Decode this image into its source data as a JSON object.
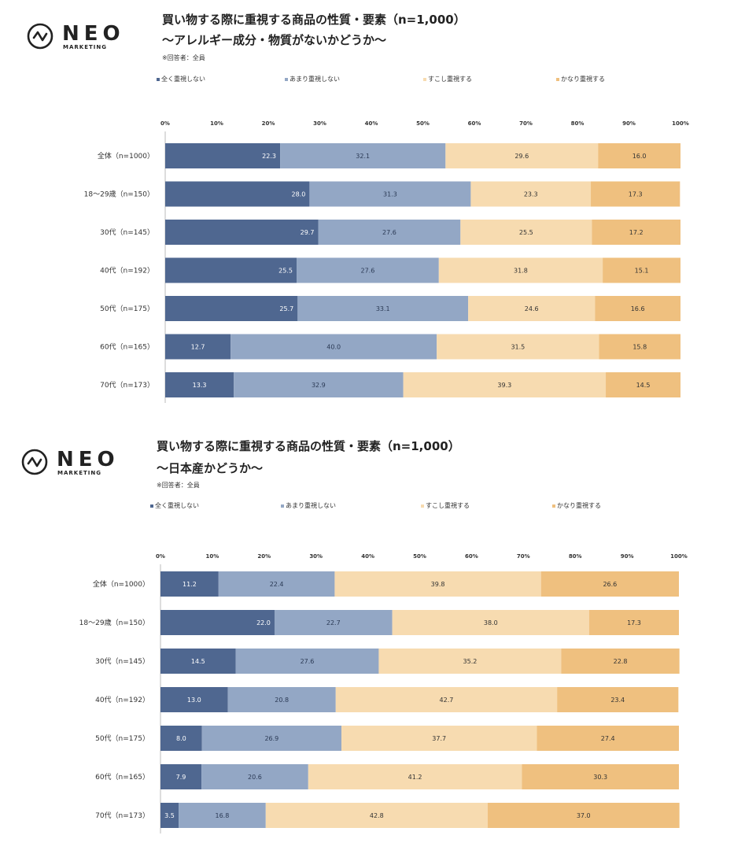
{
  "colors": {
    "c1": "#4f6790",
    "c2": "#93a7c5",
    "c3": "#f7dbb0",
    "c4": "#efc07f"
  },
  "charts": [
    {
      "logo": {
        "name": "NEO",
        "sub": "MARKETING"
      },
      "title_line1": "買い物する際に重視する商品の性質・要素（n=1,000）",
      "title_line2": "～アレルギー成分・物質がないかどうか～",
      "note": "※回答者：全員",
      "legend": [
        "全く重視しない",
        "あまり重視しない",
        "すこし重視する",
        "かなり重視する"
      ]
    },
    {
      "logo": {
        "name": "NEO",
        "sub": "MARKETING"
      },
      "title_line1": "買い物する際に重視する商品の性質・要素（n=1,000）",
      "title_line2": "～日本産かどうか～",
      "note": "※回答者：全員",
      "legend": [
        "全く重視しない",
        "あまり重視しない",
        "すこし重視する",
        "かなり重視する"
      ]
    }
  ],
  "chart_data": [
    {
      "type": "bar",
      "orientation": "horizontal-stacked-100",
      "title": "買い物する際に重視する商品の性質・要素（n=1,000） ～アレルギー成分・物質がないかどうか～",
      "xlim": [
        0,
        100
      ],
      "ticks": [
        "0%",
        "10%",
        "20%",
        "30%",
        "40%",
        "50%",
        "60%",
        "70%",
        "80%",
        "90%",
        "100%"
      ],
      "categories": [
        "全体（n=1000）",
        "18～29歳（n=150）",
        "30代（n=145）",
        "40代（n=192）",
        "50代（n=175）",
        "60代（n=165）",
        "70代（n=173）"
      ],
      "series": [
        {
          "name": "全く重視しない",
          "values": [
            22.3,
            28.0,
            29.7,
            25.5,
            25.7,
            12.7,
            13.3
          ]
        },
        {
          "name": "あまり重視しない",
          "values": [
            32.1,
            31.3,
            27.6,
            27.6,
            33.1,
            40.0,
            32.9
          ]
        },
        {
          "name": "すこし重視する",
          "values": [
            29.6,
            23.3,
            25.5,
            31.8,
            24.6,
            31.5,
            39.3
          ]
        },
        {
          "name": "かなり重視する",
          "values": [
            16.0,
            17.3,
            17.2,
            15.1,
            16.6,
            15.8,
            14.5
          ]
        }
      ]
    },
    {
      "type": "bar",
      "orientation": "horizontal-stacked-100",
      "title": "買い物する際に重視する商品の性質・要素（n=1,000） ～日本産かどうか～",
      "xlim": [
        0,
        100
      ],
      "ticks": [
        "0%",
        "10%",
        "20%",
        "30%",
        "40%",
        "50%",
        "60%",
        "70%",
        "80%",
        "90%",
        "100%"
      ],
      "categories": [
        "全体（n=1000）",
        "18～29歳（n=150）",
        "30代（n=145）",
        "40代（n=192）",
        "50代（n=175）",
        "60代（n=165）",
        "70代（n=173）"
      ],
      "series": [
        {
          "name": "全く重視しない",
          "values": [
            11.2,
            22.0,
            14.5,
            13.0,
            8.0,
            7.9,
            3.5
          ]
        },
        {
          "name": "あまり重視しない",
          "values": [
            22.4,
            22.7,
            27.6,
            20.8,
            26.9,
            20.6,
            16.8
          ]
        },
        {
          "name": "すこし重視する",
          "values": [
            39.8,
            38.0,
            35.2,
            42.7,
            37.7,
            41.2,
            42.8
          ]
        },
        {
          "name": "かなり重視する",
          "values": [
            26.6,
            17.3,
            22.8,
            23.4,
            27.4,
            30.3,
            37.0
          ]
        }
      ]
    }
  ]
}
